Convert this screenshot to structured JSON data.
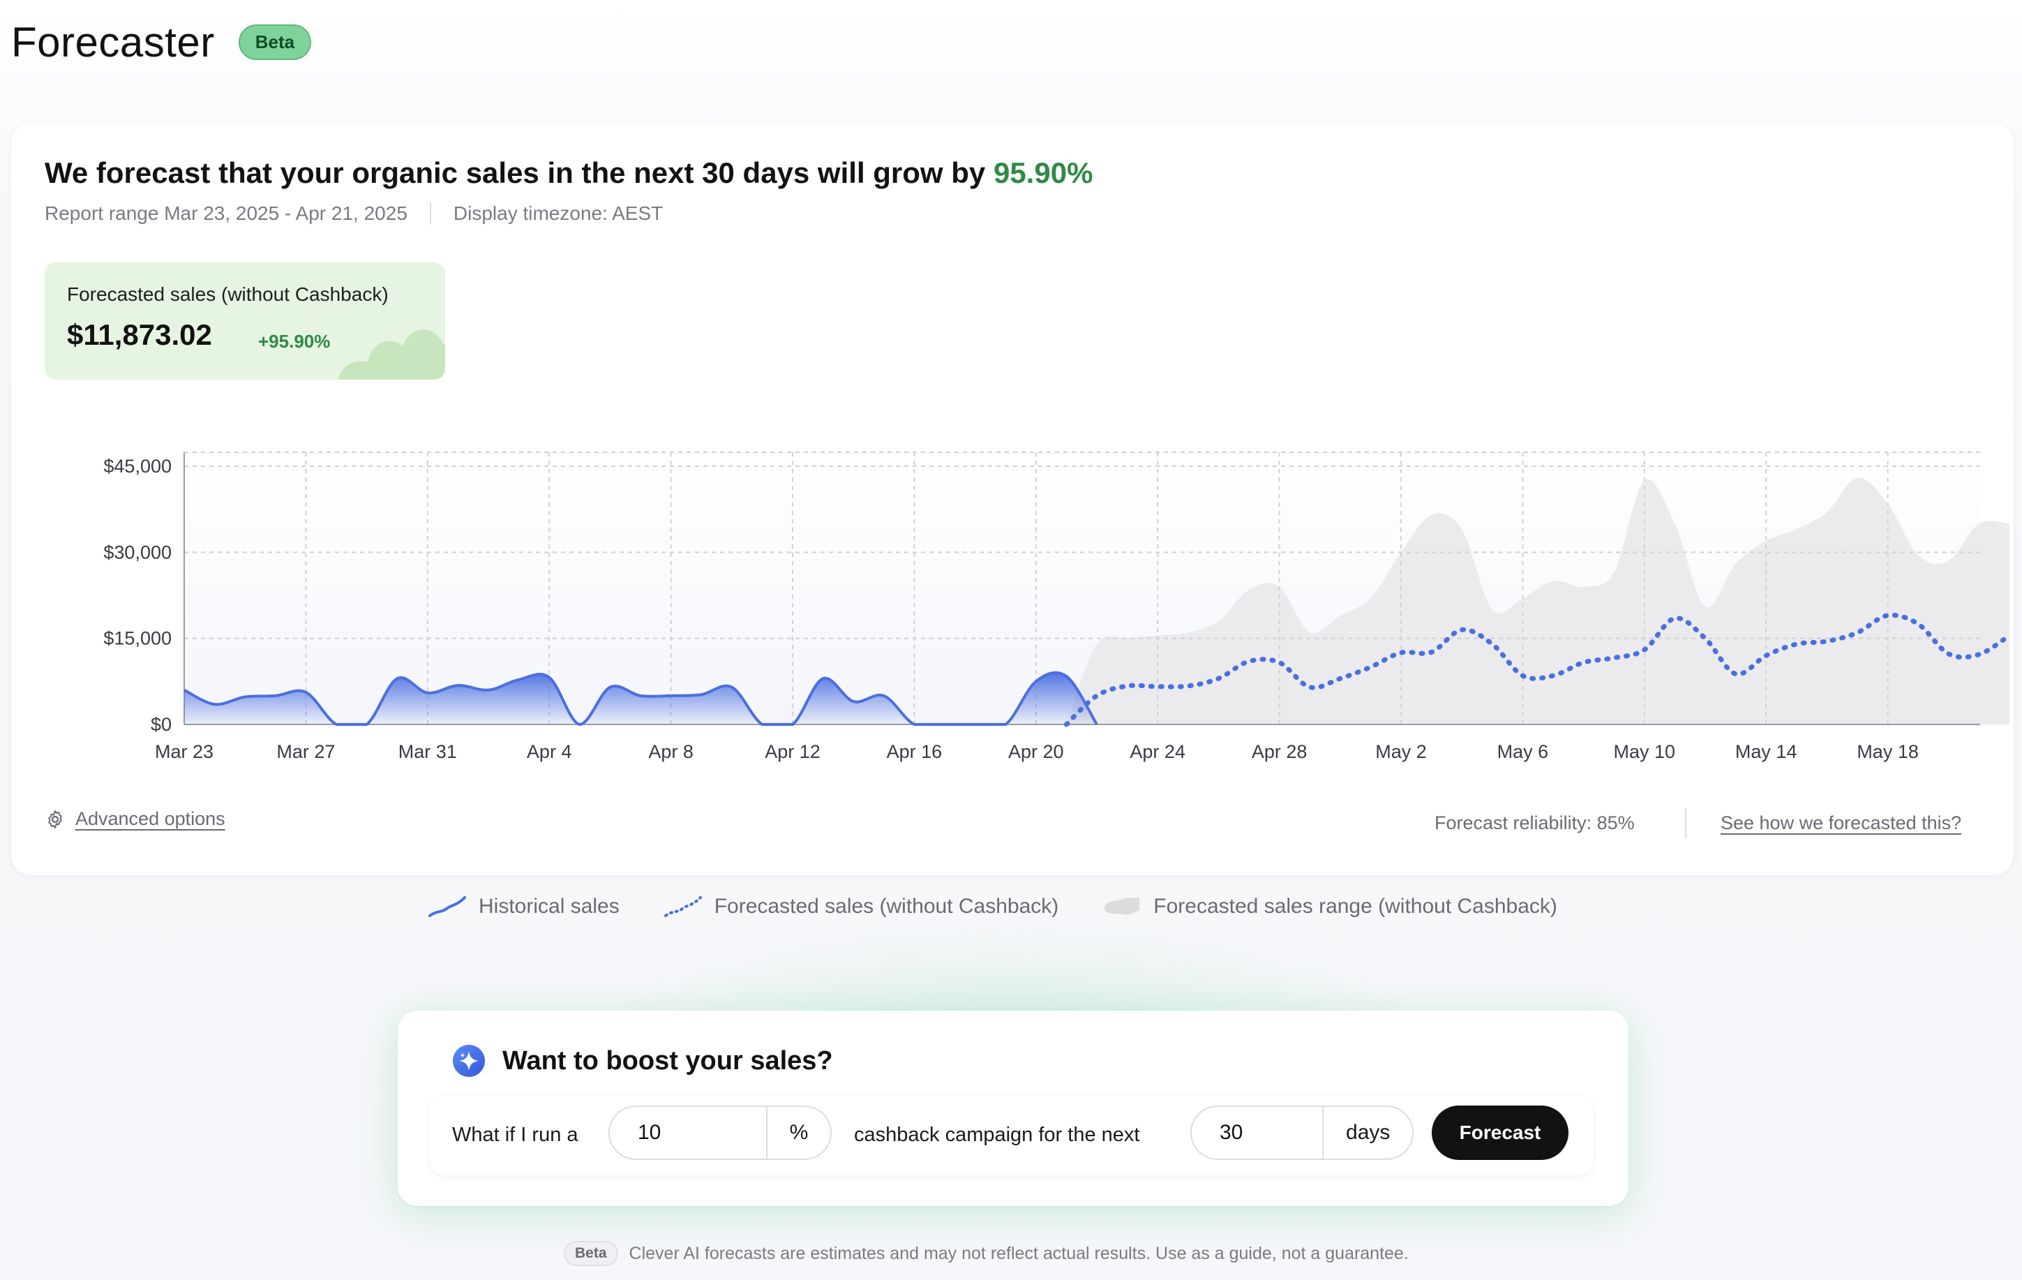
{
  "header": {
    "title": "Forecaster",
    "badge": "Beta"
  },
  "summary": {
    "headline_prefix": "We forecast that your organic sales in the next 30 days will grow by ",
    "growth": "95.90%",
    "report_range": "Report range Mar 23, 2025 - Apr 21, 2025",
    "timezone": "Display timezone: AEST"
  },
  "stat": {
    "label": "Forecasted sales (without Cashback)",
    "value": "$11,873.02",
    "delta": "+95.90%"
  },
  "chart_data": {
    "type": "area",
    "x_ticks": [
      "Mar 23",
      "Mar 27",
      "Mar 31",
      "Apr 4",
      "Apr 8",
      "Apr 12",
      "Apr 16",
      "Apr 20",
      "Apr 24",
      "Apr 28",
      "May 2",
      "May 6",
      "May 10",
      "May 14",
      "May 18"
    ],
    "y_ticks": [
      "$0",
      "$15,000",
      "$30,000",
      "$45,000"
    ],
    "ylim": [
      0,
      45000
    ],
    "grid": true,
    "historical": {
      "name": "Historical sales",
      "x_start_day": 0,
      "values": [
        6000,
        3500,
        4800,
        5000,
        5600,
        0,
        0,
        8000,
        5500,
        6800,
        6000,
        7800,
        8200,
        0,
        6500,
        5000,
        5000,
        5200,
        6500,
        0,
        0,
        8000,
        4000,
        5000,
        0,
        0,
        0,
        0,
        7500,
        8400,
        0
      ]
    },
    "forecast": {
      "name": "Forecasted sales (without Cashback)",
      "x_start_day": 29,
      "values": [
        0,
        5000,
        6700,
        6600,
        6700,
        8000,
        11000,
        10800,
        6500,
        8000,
        10000,
        12500,
        12600,
        16500,
        14000,
        8500,
        8500,
        10800,
        11600,
        13000,
        18500,
        15000,
        8800,
        12000,
        14000,
        14500,
        16000,
        19000,
        17500,
        12300,
        12200,
        15500
      ]
    },
    "forecast_range": {
      "name": "Forecasted sales range (without Cashback)",
      "x_start_day": 29,
      "low": [
        0,
        0,
        0,
        0,
        0,
        0,
        0,
        0,
        0,
        0,
        0,
        0,
        0,
        0,
        0,
        0,
        0,
        0,
        0,
        0,
        0,
        0,
        0,
        0,
        0,
        0,
        0,
        0,
        0,
        0,
        0,
        0
      ],
      "high": [
        0,
        14000,
        15000,
        15500,
        16000,
        18000,
        23500,
        24000,
        16000,
        19000,
        22000,
        30000,
        36500,
        34000,
        20000,
        22000,
        25000,
        24000,
        26500,
        42500,
        35000,
        20500,
        28000,
        32000,
        34000,
        37000,
        43000,
        38500,
        29500,
        28500,
        35000,
        35000
      ]
    }
  },
  "links": {
    "advanced": "Advanced options",
    "reliability": "Forecast reliability: 85%",
    "how": "See how we forecasted this?"
  },
  "legend": {
    "historical": "Historical sales",
    "forecast": "Forecasted sales (without Cashback)",
    "range": "Forecasted sales range (without Cashback)"
  },
  "boost": {
    "title": "Want to boost your sales?",
    "prefix": "What if I run a",
    "percent_value": "10",
    "percent_unit": "%",
    "middle": "cashback campaign for the next",
    "days_value": "30",
    "days_unit": "days",
    "button": "Forecast"
  },
  "disclaimer": {
    "badge": "Beta",
    "text": "Clever AI forecasts are estimates and may not reflect actual results. Use as a guide, not a guarantee."
  },
  "colors": {
    "accent_blue": "#4a6fe0",
    "growth_green": "#2f8a47",
    "range_gray": "#ebebed"
  }
}
